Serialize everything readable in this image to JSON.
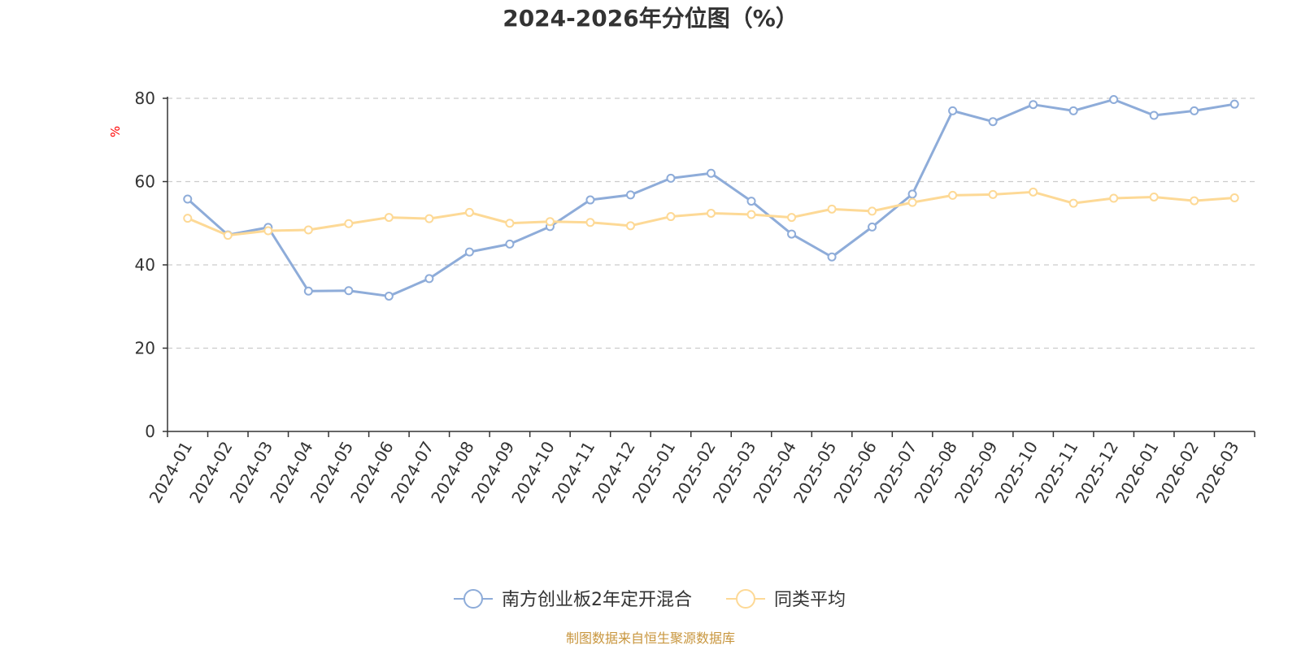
{
  "chart_data": {
    "type": "line",
    "title": "2024-2026年分位图（%）",
    "ylabel": "%",
    "ylim": [
      0,
      80
    ],
    "yticks": [
      0,
      20,
      40,
      60,
      80
    ],
    "grid": true,
    "legend_position": "bottom",
    "categories": [
      "2024-01",
      "2024-02",
      "2024-03",
      "2024-04",
      "2024-05",
      "2024-06",
      "2024-07",
      "2024-08",
      "2024-09",
      "2024-10",
      "2024-11",
      "2024-12",
      "2025-01",
      "2025-02",
      "2025-03",
      "2025-04",
      "2025-05",
      "2025-06",
      "2025-07",
      "2025-08",
      "2025-09",
      "2025-10",
      "2025-11",
      "2025-12",
      "2026-01",
      "2026-02",
      "2026-03"
    ],
    "series": [
      {
        "name": "南方创业板2年定开混合",
        "color": "#8eacd9",
        "values": [
          55.8,
          47.2,
          49.0,
          33.7,
          33.8,
          32.5,
          36.7,
          43.1,
          45.0,
          49.2,
          55.6,
          56.8,
          60.8,
          62.0,
          55.3,
          47.4,
          41.9,
          49.1,
          57.0,
          77.0,
          74.4,
          78.5,
          77.0,
          79.7,
          75.9,
          77.0,
          78.6
        ]
      },
      {
        "name": "同类平均",
        "color": "#fdd996",
        "values": [
          51.2,
          47.1,
          48.2,
          48.4,
          49.9,
          51.4,
          51.1,
          52.6,
          50.0,
          50.4,
          50.2,
          49.4,
          51.6,
          52.4,
          52.1,
          51.4,
          53.4,
          52.9,
          55.0,
          56.7,
          56.9,
          57.5,
          54.8,
          56.0,
          56.3,
          55.4,
          56.1
        ]
      }
    ]
  },
  "footer": {
    "source": "制图数据来自恒生聚源数据库"
  }
}
